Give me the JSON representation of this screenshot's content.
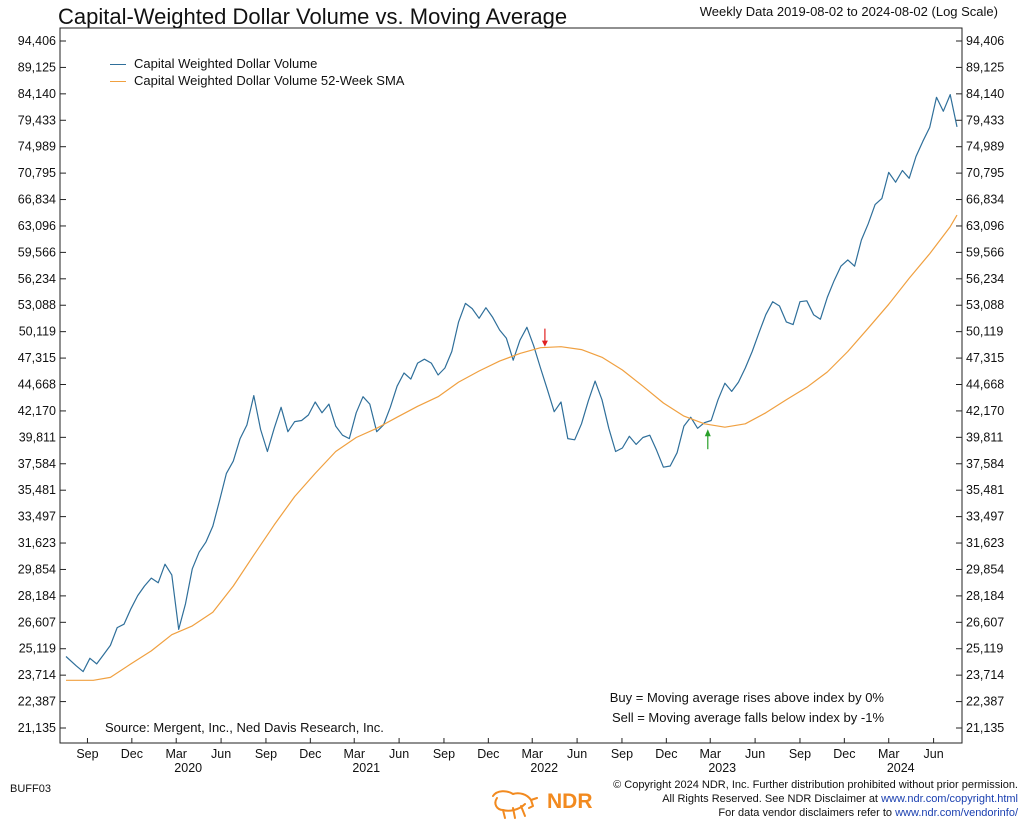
{
  "header": {
    "title": "Capital-Weighted Dollar Volume vs. Moving Average",
    "subtitle": "Weekly Data 2019-08-02 to 2024-08-02 (Log Scale)"
  },
  "footer": {
    "source": "Source:   Mergent, Inc., Ned Davis Research, Inc.",
    "rule_buy": "Buy = Moving average rises above index by 0%",
    "rule_sell": "Sell = Moving average falls below index by -1%",
    "chart_code": "BUFF03",
    "copyright_1": "© Copyright 2024 NDR, Inc. Further distribution prohibited without prior permission.",
    "copyright_2_text": "All Rights Reserved. See NDR Disclaimer at ",
    "copyright_2_link": "www.ndr.com/copyright.html",
    "copyright_3_text": "For data vendor disclaimers refer to ",
    "copyright_3_link": "www.ndr.com/vendorinfo/",
    "logo_text": "NDR"
  },
  "colors": {
    "series_main": "#2f6f9a",
    "series_sma": "#f0a040",
    "buy_arrow": "#2aa02a",
    "sell_arrow": "#e02020",
    "logo": "#f28a1f"
  },
  "chart_data": {
    "type": "line",
    "scale": "log",
    "ylim": [
      21135,
      94406
    ],
    "y_ticks": [
      21135,
      22387,
      23714,
      25119,
      26607,
      28184,
      29854,
      31623,
      33497,
      35481,
      37584,
      39811,
      42170,
      44668,
      47315,
      50119,
      53088,
      56234,
      59566,
      63096,
      66834,
      70795,
      74989,
      79433,
      84140,
      89125,
      94406
    ],
    "y_tick_labels": [
      "21,135",
      "22,387",
      "23,714",
      "25,119",
      "26,607",
      "28,184",
      "29,854",
      "31,623",
      "33,497",
      "35,481",
      "37,584",
      "39,811",
      "42,170",
      "44,668",
      "47,315",
      "50,119",
      "53,088",
      "56,234",
      "59,566",
      "63,096",
      "66,834",
      "70,795",
      "74,989",
      "79,433",
      "84,140",
      "89,125",
      "94,406"
    ],
    "xlim": [
      "2019-08-02",
      "2024-08-02"
    ],
    "x_month_ticks": [
      {
        "date": "2019-09-15",
        "label": "Sep"
      },
      {
        "date": "2019-12-15",
        "label": "Dec"
      },
      {
        "date": "2020-03-15",
        "label": "Mar"
      },
      {
        "date": "2020-06-15",
        "label": "Jun"
      },
      {
        "date": "2020-09-15",
        "label": "Sep"
      },
      {
        "date": "2020-12-15",
        "label": "Dec"
      },
      {
        "date": "2021-03-15",
        "label": "Mar"
      },
      {
        "date": "2021-06-15",
        "label": "Jun"
      },
      {
        "date": "2021-09-15",
        "label": "Sep"
      },
      {
        "date": "2021-12-15",
        "label": "Dec"
      },
      {
        "date": "2022-03-15",
        "label": "Mar"
      },
      {
        "date": "2022-06-15",
        "label": "Jun"
      },
      {
        "date": "2022-09-15",
        "label": "Sep"
      },
      {
        "date": "2022-12-15",
        "label": "Dec"
      },
      {
        "date": "2023-03-15",
        "label": "Mar"
      },
      {
        "date": "2023-06-15",
        "label": "Jun"
      },
      {
        "date": "2023-09-15",
        "label": "Sep"
      },
      {
        "date": "2023-12-15",
        "label": "Dec"
      },
      {
        "date": "2024-03-15",
        "label": "Mar"
      },
      {
        "date": "2024-06-15",
        "label": "Jun"
      }
    ],
    "x_year_labels": [
      {
        "date": "2020-03-15",
        "label": "2020"
      },
      {
        "date": "2021-03-15",
        "label": "2021"
      },
      {
        "date": "2022-03-15",
        "label": "2022"
      },
      {
        "date": "2023-03-15",
        "label": "2023"
      },
      {
        "date": "2024-03-15",
        "label": "2024"
      }
    ],
    "legend_placement": "top-left",
    "grid": false,
    "series": [
      {
        "name": "Capital Weighted Dollar Volume",
        "color": "#2f6f9a",
        "points": [
          [
            "2019-08-02",
            24700
          ],
          [
            "2019-08-23",
            24200
          ],
          [
            "2019-09-06",
            23900
          ],
          [
            "2019-09-20",
            24600
          ],
          [
            "2019-10-04",
            24300
          ],
          [
            "2019-10-18",
            24800
          ],
          [
            "2019-11-01",
            25300
          ],
          [
            "2019-11-15",
            26300
          ],
          [
            "2019-11-29",
            26500
          ],
          [
            "2019-12-13",
            27400
          ],
          [
            "2019-12-27",
            28200
          ],
          [
            "2020-01-10",
            28800
          ],
          [
            "2020-01-24",
            29300
          ],
          [
            "2020-02-07",
            29000
          ],
          [
            "2020-02-21",
            30200
          ],
          [
            "2020-03-06",
            29500
          ],
          [
            "2020-03-20",
            26200
          ],
          [
            "2020-04-03",
            27700
          ],
          [
            "2020-04-17",
            29900
          ],
          [
            "2020-05-01",
            31000
          ],
          [
            "2020-05-15",
            31700
          ],
          [
            "2020-05-29",
            32800
          ],
          [
            "2020-06-12",
            34700
          ],
          [
            "2020-06-26",
            36800
          ],
          [
            "2020-07-10",
            37800
          ],
          [
            "2020-07-24",
            39700
          ],
          [
            "2020-08-07",
            40900
          ],
          [
            "2020-08-21",
            43600
          ],
          [
            "2020-09-04",
            40500
          ],
          [
            "2020-09-18",
            38600
          ],
          [
            "2020-10-02",
            40600
          ],
          [
            "2020-10-16",
            42500
          ],
          [
            "2020-10-30",
            40300
          ],
          [
            "2020-11-13",
            41200
          ],
          [
            "2020-11-27",
            41300
          ],
          [
            "2020-12-11",
            41800
          ],
          [
            "2020-12-25",
            43000
          ],
          [
            "2021-01-08",
            42000
          ],
          [
            "2021-01-22",
            42800
          ],
          [
            "2021-02-05",
            40800
          ],
          [
            "2021-02-19",
            40000
          ],
          [
            "2021-03-05",
            39700
          ],
          [
            "2021-03-19",
            42000
          ],
          [
            "2021-04-02",
            43500
          ],
          [
            "2021-04-16",
            42800
          ],
          [
            "2021-04-30",
            40300
          ],
          [
            "2021-05-14",
            40900
          ],
          [
            "2021-05-28",
            42500
          ],
          [
            "2021-06-11",
            44500
          ],
          [
            "2021-06-25",
            45800
          ],
          [
            "2021-07-09",
            45200
          ],
          [
            "2021-07-23",
            46800
          ],
          [
            "2021-08-06",
            47200
          ],
          [
            "2021-08-20",
            46800
          ],
          [
            "2021-09-03",
            45600
          ],
          [
            "2021-09-17",
            46300
          ],
          [
            "2021-10-01",
            48000
          ],
          [
            "2021-10-15",
            51200
          ],
          [
            "2021-10-29",
            53300
          ],
          [
            "2021-11-12",
            52700
          ],
          [
            "2021-11-26",
            51600
          ],
          [
            "2021-12-10",
            52800
          ],
          [
            "2021-12-24",
            51700
          ],
          [
            "2022-01-07",
            50300
          ],
          [
            "2022-01-21",
            49400
          ],
          [
            "2022-02-04",
            47100
          ],
          [
            "2022-02-18",
            49200
          ],
          [
            "2022-03-04",
            50600
          ],
          [
            "2022-03-18",
            48600
          ],
          [
            "2022-04-01",
            46300
          ],
          [
            "2022-04-15",
            44200
          ],
          [
            "2022-04-29",
            42100
          ],
          [
            "2022-05-13",
            43000
          ],
          [
            "2022-05-27",
            39700
          ],
          [
            "2022-06-10",
            39600
          ],
          [
            "2022-06-24",
            41000
          ],
          [
            "2022-07-08",
            43100
          ],
          [
            "2022-07-22",
            45000
          ],
          [
            "2022-08-05",
            43200
          ],
          [
            "2022-08-19",
            40600
          ],
          [
            "2022-09-02",
            38600
          ],
          [
            "2022-09-16",
            38900
          ],
          [
            "2022-09-30",
            39900
          ],
          [
            "2022-10-14",
            39200
          ],
          [
            "2022-10-28",
            39800
          ],
          [
            "2022-11-11",
            40000
          ],
          [
            "2022-11-25",
            38700
          ],
          [
            "2022-12-09",
            37300
          ],
          [
            "2022-12-23",
            37400
          ],
          [
            "2023-01-06",
            38500
          ],
          [
            "2023-01-20",
            40800
          ],
          [
            "2023-02-03",
            41600
          ],
          [
            "2023-02-17",
            40600
          ],
          [
            "2023-03-03",
            41100
          ],
          [
            "2023-03-17",
            41300
          ],
          [
            "2023-03-31",
            43200
          ],
          [
            "2023-04-14",
            44800
          ],
          [
            "2023-04-28",
            44000
          ],
          [
            "2023-05-12",
            44900
          ],
          [
            "2023-05-26",
            46300
          ],
          [
            "2023-06-09",
            48000
          ],
          [
            "2023-06-23",
            50000
          ],
          [
            "2023-07-07",
            52000
          ],
          [
            "2023-07-21",
            53500
          ],
          [
            "2023-08-04",
            53000
          ],
          [
            "2023-08-18",
            51200
          ],
          [
            "2023-09-01",
            50900
          ],
          [
            "2023-09-15",
            53500
          ],
          [
            "2023-09-29",
            53600
          ],
          [
            "2023-10-13",
            52000
          ],
          [
            "2023-10-27",
            51500
          ],
          [
            "2023-11-10",
            54000
          ],
          [
            "2023-11-24",
            56000
          ],
          [
            "2023-12-08",
            57800
          ],
          [
            "2023-12-22",
            58600
          ],
          [
            "2024-01-05",
            57800
          ],
          [
            "2024-01-19",
            61200
          ],
          [
            "2024-02-02",
            63400
          ],
          [
            "2024-02-16",
            66100
          ],
          [
            "2024-03-01",
            67000
          ],
          [
            "2024-03-15",
            70900
          ],
          [
            "2024-03-29",
            69400
          ],
          [
            "2024-04-12",
            71200
          ],
          [
            "2024-04-26",
            70000
          ],
          [
            "2024-05-10",
            73400
          ],
          [
            "2024-05-24",
            75900
          ],
          [
            "2024-06-07",
            78200
          ],
          [
            "2024-06-21",
            83500
          ],
          [
            "2024-07-05",
            81000
          ],
          [
            "2024-07-19",
            84000
          ],
          [
            "2024-08-02",
            78300
          ]
        ]
      },
      {
        "name": "Capital Weighted Dollar Volume 52-Week SMA",
        "color": "#f0a040",
        "points": [
          [
            "2019-08-02",
            23450
          ],
          [
            "2019-09-27",
            23450
          ],
          [
            "2019-11-01",
            23600
          ],
          [
            "2019-12-13",
            24300
          ],
          [
            "2020-01-24",
            25000
          ],
          [
            "2020-03-06",
            25900
          ],
          [
            "2020-04-17",
            26400
          ],
          [
            "2020-05-29",
            27200
          ],
          [
            "2020-07-10",
            28800
          ],
          [
            "2020-08-21",
            30800
          ],
          [
            "2020-10-02",
            32900
          ],
          [
            "2020-11-13",
            35000
          ],
          [
            "2020-12-25",
            36800
          ],
          [
            "2021-02-05",
            38600
          ],
          [
            "2021-03-19",
            39800
          ],
          [
            "2021-04-30",
            40600
          ],
          [
            "2021-06-11",
            41600
          ],
          [
            "2021-07-23",
            42600
          ],
          [
            "2021-09-03",
            43500
          ],
          [
            "2021-10-15",
            44900
          ],
          [
            "2021-11-26",
            46000
          ],
          [
            "2022-01-07",
            47000
          ],
          [
            "2022-02-18",
            47800
          ],
          [
            "2022-04-01",
            48400
          ],
          [
            "2022-05-13",
            48500
          ],
          [
            "2022-06-24",
            48200
          ],
          [
            "2022-08-05",
            47400
          ],
          [
            "2022-09-16",
            46100
          ],
          [
            "2022-10-28",
            44500
          ],
          [
            "2022-12-09",
            42900
          ],
          [
            "2023-01-20",
            41700
          ],
          [
            "2023-03-03",
            41000
          ],
          [
            "2023-04-14",
            40700
          ],
          [
            "2023-05-26",
            41000
          ],
          [
            "2023-07-07",
            42000
          ],
          [
            "2023-08-18",
            43200
          ],
          [
            "2023-09-29",
            44400
          ],
          [
            "2023-11-10",
            45900
          ],
          [
            "2023-12-22",
            48000
          ],
          [
            "2024-02-02",
            50500
          ],
          [
            "2024-03-15",
            53200
          ],
          [
            "2024-04-26",
            56300
          ],
          [
            "2024-06-07",
            59400
          ],
          [
            "2024-07-19",
            63000
          ],
          [
            "2024-08-02",
            64600
          ]
        ]
      }
    ],
    "signals": [
      {
        "type": "sell",
        "date": "2022-04-10",
        "value": 48300
      },
      {
        "type": "buy",
        "date": "2023-03-10",
        "value": 40700
      }
    ]
  }
}
